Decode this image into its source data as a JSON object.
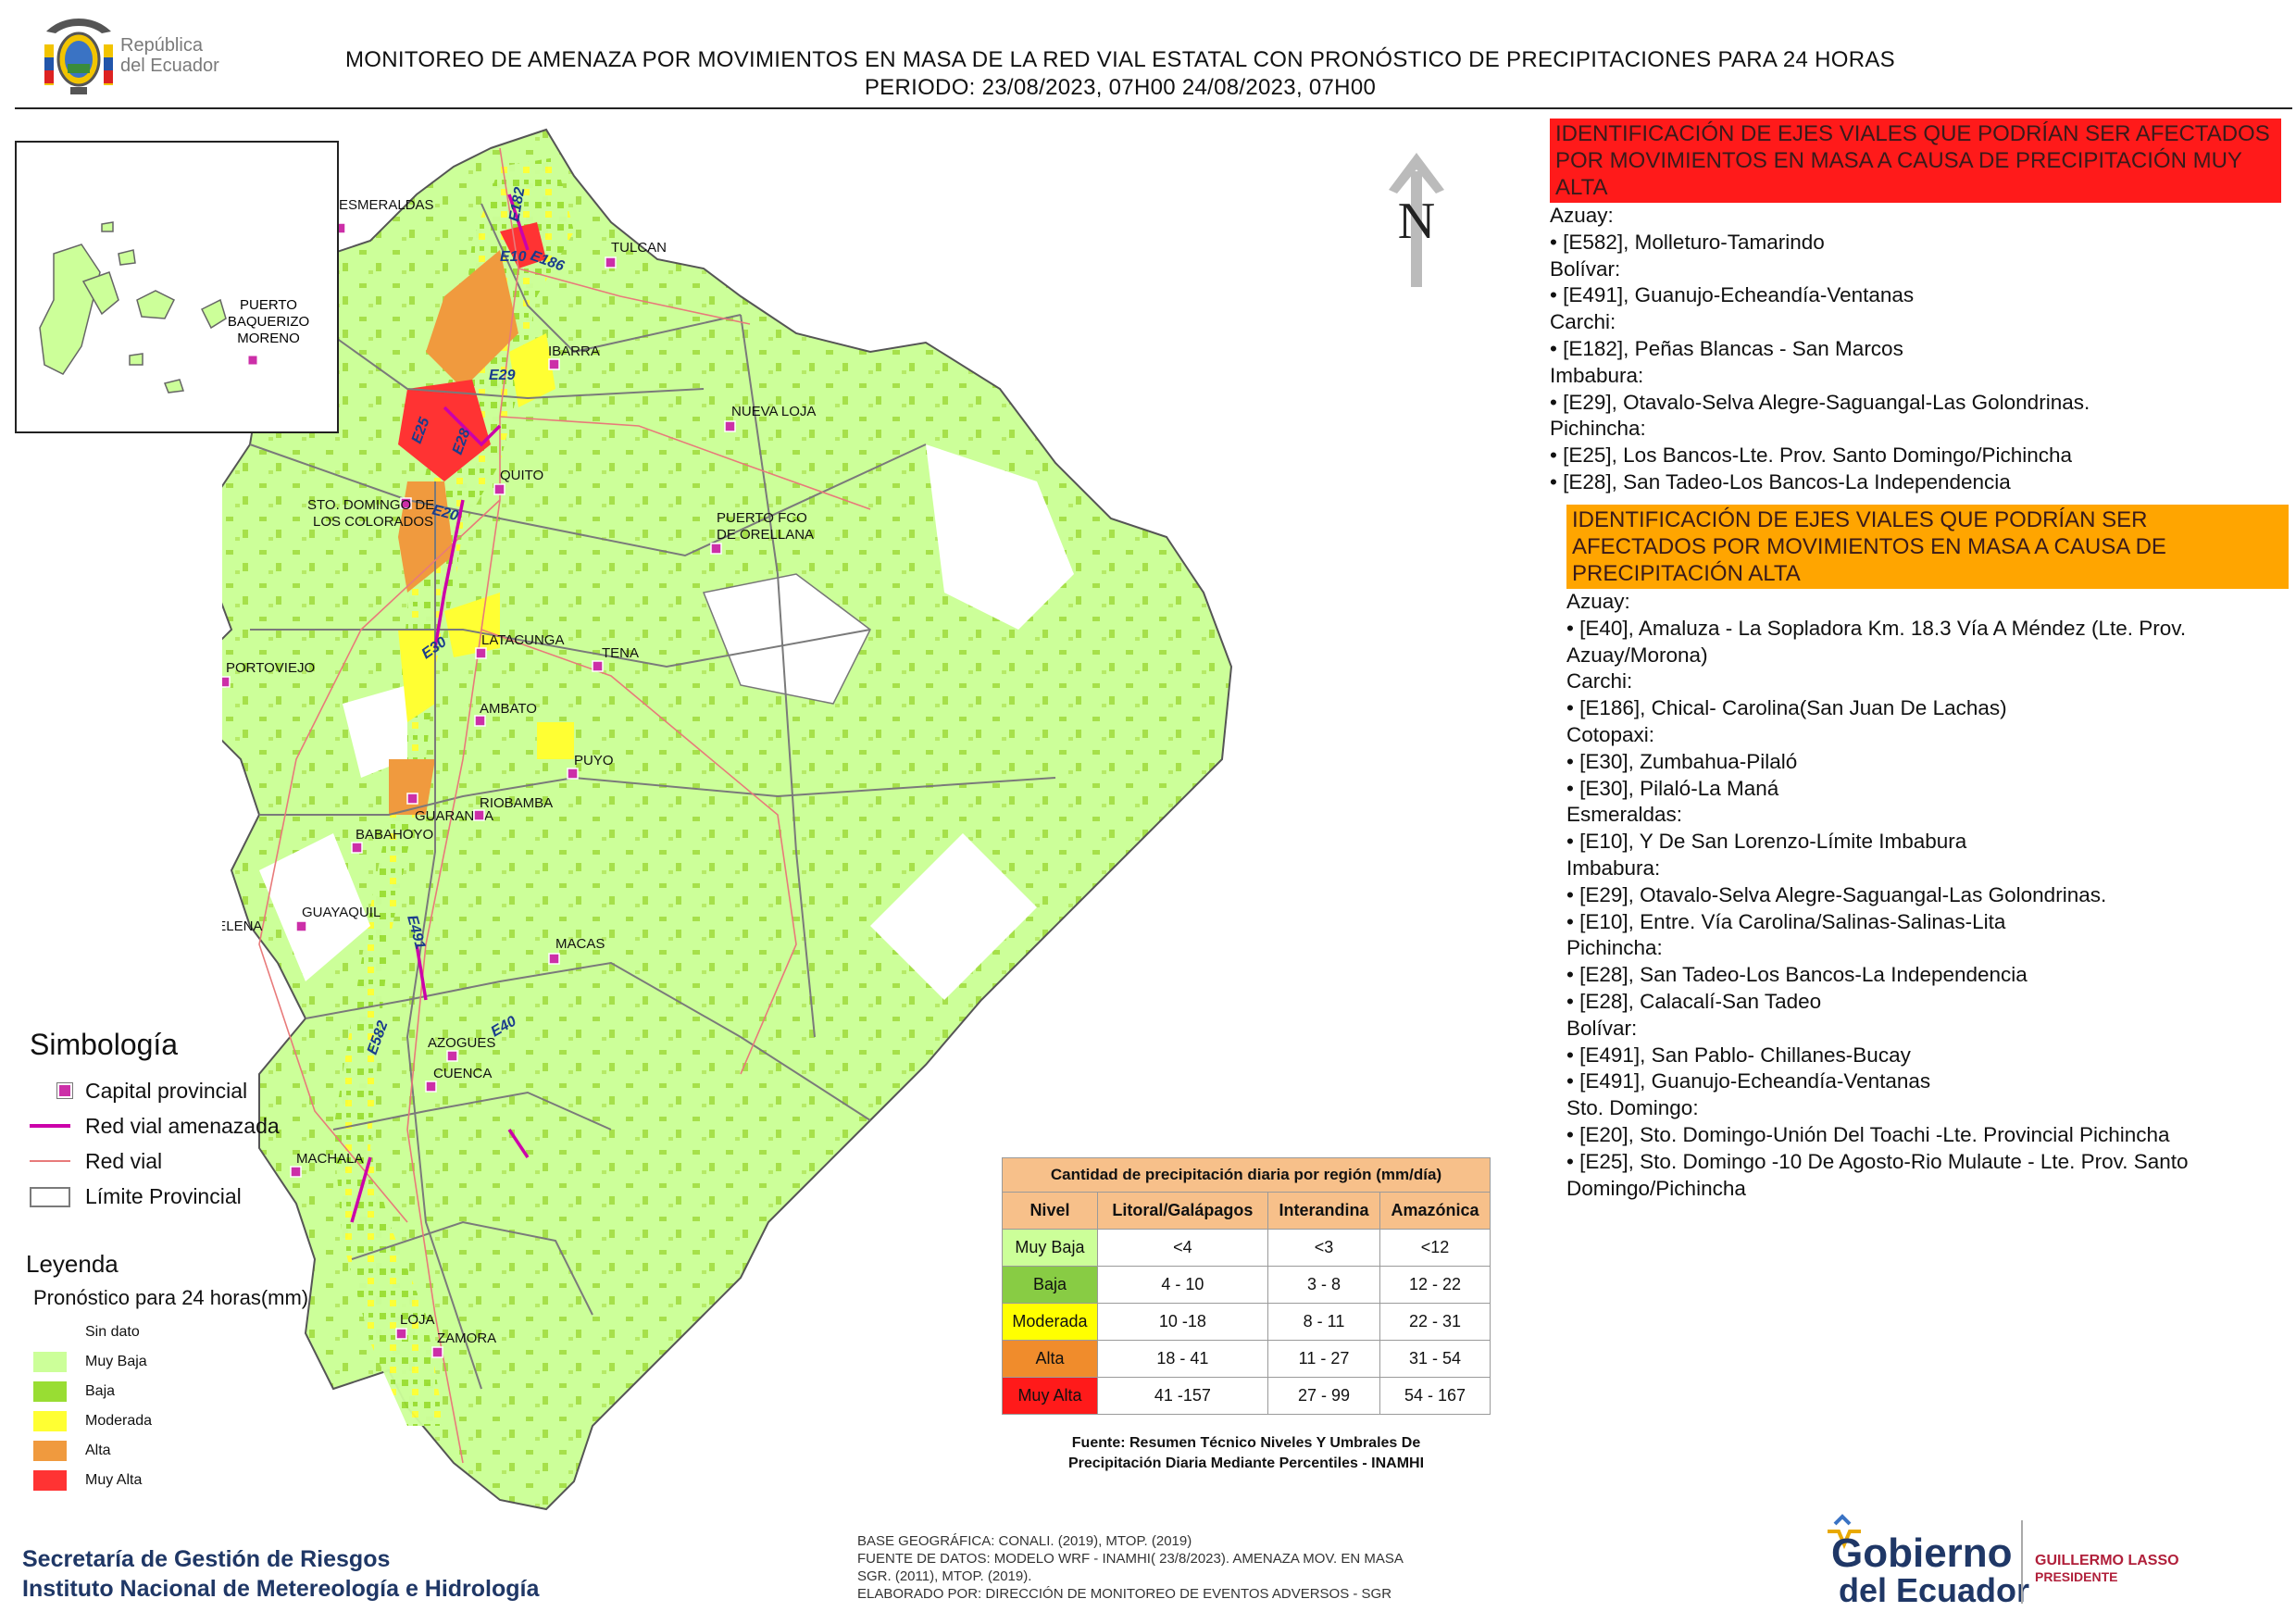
{
  "header": {
    "title_line1": "MONITOREO DE AMENAZA POR MOVIMIENTOS EN MASA DE LA RED VIAL  ESTATAL  CON PRONÓSTICO  DE  PRECIPITACIONES PARA 24 HORAS",
    "title_line2": "PERIODO: 23/08/2023, 07H00 24/08/2023, 07H00",
    "logo_text_line1": "República",
    "logo_text_line2": "del Ecuador"
  },
  "colors": {
    "sin_dato": "#ffffff",
    "muy_baja": "#ccff99",
    "baja": "#99dd33",
    "moderada": "#ffff33",
    "alta": "#f09a3e",
    "muy_alta": "#ff3333",
    "panel_very_high": "#ff1a1a",
    "panel_high": "#ffa500",
    "capital_marker": "#cc2fa8",
    "threatened_road": "#cc00aa",
    "road": "#e87a7a",
    "province_border": "#7a7a7a"
  },
  "map": {
    "north_label": "N",
    "cities": [
      {
        "name": "ESMERALDAS"
      },
      {
        "name": "TULCAN"
      },
      {
        "name": "IBARRA"
      },
      {
        "name": "NUEVA LOJA"
      },
      {
        "name": "QUITO"
      },
      {
        "name": "STO. DOMINGO DE"
      },
      {
        "name": "LOS COLORADOS"
      },
      {
        "name": "PUERTO FCO"
      },
      {
        "name": "DE ORELLANA"
      },
      {
        "name": "LATACUNGA"
      },
      {
        "name": "TENA"
      },
      {
        "name": "PORTOVIEJO"
      },
      {
        "name": "AMBATO"
      },
      {
        "name": "PUYO"
      },
      {
        "name": "GUARANDA"
      },
      {
        "name": "RIOBAMBA"
      },
      {
        "name": "BABAHOYO"
      },
      {
        "name": "GUAYAQUIL"
      },
      {
        "name": "SANTA ELENA"
      },
      {
        "name": "MACAS"
      },
      {
        "name": "AZOGUES"
      },
      {
        "name": "CUENCA"
      },
      {
        "name": "MACHALA"
      },
      {
        "name": "LOJA"
      },
      {
        "name": "ZAMORA"
      }
    ],
    "inset_city": [
      "PUERTO",
      "BAQUERIZO",
      "MORENO"
    ],
    "road_codes": [
      "E182",
      "E10",
      "E186",
      "E29",
      "E25",
      "E28",
      "E20",
      "E30",
      "E491",
      "E582",
      "E40"
    ]
  },
  "simbologia": {
    "title": "Simbología",
    "items": [
      "Capital provincial",
      "Red vial amenazada",
      "Red vial",
      "Límite Provincial"
    ]
  },
  "leyenda": {
    "title": "Leyenda",
    "subtitle": "Pronóstico para 24 horas(mm)",
    "items": [
      "Sin dato",
      "Muy Baja",
      "Baja",
      "Moderada",
      "Alta",
      "Muy Alta"
    ]
  },
  "precip_table": {
    "caption": "Cantidad de precipitación diaria por región (mm/día)",
    "headers": [
      "Nivel",
      "Litoral/Galápagos",
      "Interandina",
      "Amazónica"
    ],
    "rows": [
      [
        "Muy Baja",
        "<4",
        "<3",
        "<12"
      ],
      [
        "Baja",
        "4 - 10",
        "3 - 8",
        "12 - 22"
      ],
      [
        "Moderada",
        "10 -18",
        "8 - 11",
        "22 - 31"
      ],
      [
        "Alta",
        "18 - 41",
        "11 - 27",
        "31 - 54"
      ],
      [
        "Muy Alta",
        "41 -157",
        "27 - 99",
        "54 - 167"
      ]
    ],
    "source_line1": "Fuente: Resumen Técnico Niveles Y Umbrales De",
    "source_line2": "Precipitación Diaria Mediante Percentiles - INAMHI"
  },
  "panel_very_high": {
    "heading": "IDENTIFICACIÓN DE EJES VIALES QUE PODRÍAN SER AFECTADOS POR MOVIMIENTOS EN MASA A CAUSA DE PRECIPITACIÓN MUY ALTA",
    "lines": [
      "Azuay:",
      "• [E582], Molleturo-Tamarindo",
      "Bolívar:",
      "• [E491], Guanujo-Echeandía-Ventanas",
      "Carchi:",
      "• [E182], Peñas Blancas - San Marcos",
      "Imbabura:",
      "• [E29], Otavalo-Selva Alegre-Saguangal-Las Golondrinas.",
      "Pichincha:",
      "• [E25], Los Bancos-Lte. Prov. Santo Domingo/Pichincha",
      "• [E28], San Tadeo-Los Bancos-La Independencia"
    ]
  },
  "panel_high": {
    "heading": "IDENTIFICACIÓN DE EJES VIALES QUE PODRÍAN SER AFECTADOS POR MOVIMIENTOS EN MASA A CAUSA DE PRECIPITACIÓN  ALTA",
    "lines": [
      "Azuay:",
      "• [E40], Amaluza - La Sopladora Km. 18.3 Vía A Méndez (Lte. Prov.",
      "Azuay/Morona)",
      "Carchi:",
      "• [E186], Chical- Carolina(San Juan De Lachas)",
      "Cotopaxi:",
      "• [E30], Zumbahua-Pilaló",
      "• [E30], Pilaló-La Maná",
      "Esmeraldas:",
      "• [E10], Y De San Lorenzo-Límite Imbabura",
      "Imbabura:",
      "• [E29], Otavalo-Selva Alegre-Saguangal-Las Golondrinas.",
      "• [E10], Entre. Vía Carolina/Salinas-Salinas-Lita",
      "Pichincha:",
      "• [E28], San Tadeo-Los Bancos-La Independencia",
      "• [E28], Calacalí-San Tadeo",
      "Bolívar:",
      "• [E491], San Pablo- Chillanes-Bucay",
      "• [E491], Guanujo-Echeandía-Ventanas",
      "Sto. Domingo:",
      "• [E20], Sto. Domingo-Unión Del Toachi -Lte. Provincial Pichincha",
      "• [E25], Sto. Domingo -10 De Agosto-Rio Mulaute - Lte. Prov. Santo",
      "Domingo/Pichincha"
    ]
  },
  "footer": {
    "left_line1": "Secretaría de Gestión de Riesgos",
    "left_line2": "Instituto Nacional de Metereología e Hidrología",
    "mid_lines": [
      "BASE GEOGRÁFICA: CONALI. (2019), MTOP. (2019)",
      "FUENTE DE DATOS: MODELO WRF - INAMHI( 23/8/2023).  AMENAZA MOV. EN MASA",
      "SGR. (2011), MTOP. (2019).",
      "ELABORADO POR: DIRECCIÓN DE MONITOREO DE EVENTOS ADVERSOS - SGR"
    ],
    "gov_line1": "Gobierno",
    "gov_line2": "del Ecuador",
    "president_name": "GUILLERMO LASSO",
    "president_title": "PRESIDENTE"
  }
}
